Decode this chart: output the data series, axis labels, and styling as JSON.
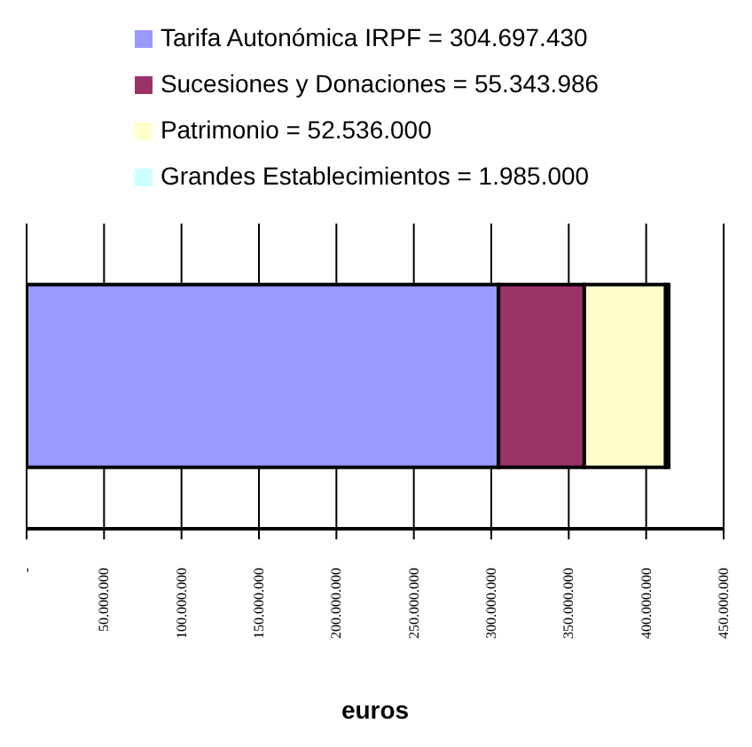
{
  "chart_data": {
    "type": "bar",
    "orientation": "horizontal",
    "stacked": true,
    "categories": [
      null
    ],
    "series": [
      {
        "name": "Tarifa Autonómica IRPF = 304.697.430",
        "color": "#9999ff",
        "values": [
          304697430
        ]
      },
      {
        "name": "Sucesiones y Donaciones = 55.343.986",
        "color": "#993366",
        "values": [
          55343986
        ]
      },
      {
        "name": "Patrimonio = 52.536.000",
        "color": "#ffffcc",
        "values": [
          52536000
        ]
      },
      {
        "name": "Grandes Establecimientos = 1.985.000",
        "color": "#ccffff",
        "values": [
          1985000
        ]
      }
    ],
    "xlim": [
      0,
      450000000
    ],
    "xticks": [
      {
        "value": 0,
        "label": "-"
      },
      {
        "value": 50000000,
        "label": "50.000.000"
      },
      {
        "value": 100000000,
        "label": "100.000.000"
      },
      {
        "value": 150000000,
        "label": "150.000.000"
      },
      {
        "value": 200000000,
        "label": "200.000.000"
      },
      {
        "value": 250000000,
        "label": "250.000.000"
      },
      {
        "value": 300000000,
        "label": "300.000.000"
      },
      {
        "value": 350000000,
        "label": "350.000.000"
      },
      {
        "value": 400000000,
        "label": "400.000.000"
      },
      {
        "value": 450000000,
        "label": "450.000.000"
      }
    ],
    "xlabel": "euros",
    "grid": "x",
    "legend": "top"
  }
}
